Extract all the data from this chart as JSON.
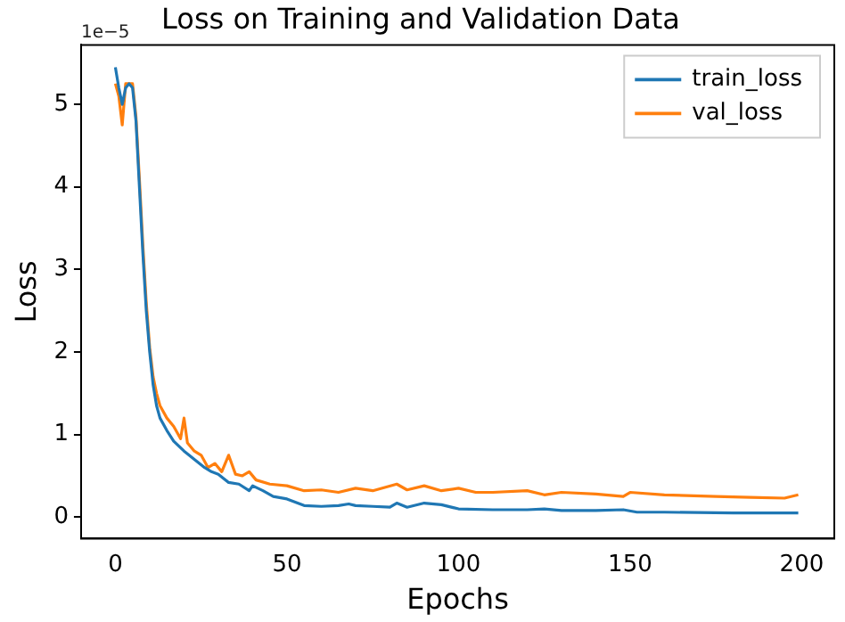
{
  "chart_data": {
    "type": "line",
    "title": "Loss on Training and Validation Data",
    "xlabel": "Epochs",
    "ylabel": "Loss",
    "annotations": [
      "1e−5"
    ],
    "xlim": [
      -10,
      209.5
    ],
    "ylim": [
      -0.26,
      5.72
    ],
    "xticks": [
      0,
      50,
      100,
      150,
      200
    ],
    "yticks": [
      0,
      1,
      2,
      3,
      4,
      5
    ],
    "grid": false,
    "legend": "top right",
    "marker": "none",
    "line_style": "solid",
    "series": [
      {
        "name": "train_loss",
        "color": "#1f77b4",
        "x": [
          0,
          1,
          2,
          3,
          4,
          5,
          6,
          7,
          8,
          9,
          10,
          11,
          12,
          13,
          15,
          17,
          20,
          23,
          26,
          28,
          30,
          33,
          36,
          39,
          40,
          43,
          46,
          50,
          55,
          60,
          65,
          68,
          70,
          75,
          80,
          82,
          85,
          90,
          95,
          100,
          110,
          120,
          125,
          130,
          140,
          148,
          152,
          160,
          180,
          199
        ],
        "values": [
          5.45,
          5.2,
          5.0,
          5.2,
          5.25,
          5.2,
          4.8,
          4.0,
          3.2,
          2.5,
          2.0,
          1.6,
          1.35,
          1.2,
          1.05,
          0.92,
          0.8,
          0.7,
          0.6,
          0.55,
          0.52,
          0.42,
          0.4,
          0.32,
          0.38,
          0.32,
          0.25,
          0.22,
          0.14,
          0.13,
          0.14,
          0.16,
          0.14,
          0.13,
          0.12,
          0.17,
          0.12,
          0.17,
          0.15,
          0.1,
          0.09,
          0.09,
          0.1,
          0.08,
          0.08,
          0.09,
          0.06,
          0.06,
          0.05,
          0.05
        ]
      },
      {
        "name": "val_loss",
        "color": "#ff7f0e",
        "x": [
          0,
          1,
          2,
          3,
          4,
          5,
          6,
          7,
          8,
          9,
          10,
          11,
          12,
          13,
          15,
          17,
          19,
          20,
          21,
          23,
          25,
          27,
          29,
          31,
          33,
          35,
          37,
          39,
          41,
          45,
          50,
          55,
          60,
          65,
          70,
          75,
          82,
          85,
          90,
          95,
          100,
          105,
          110,
          120,
          125,
          130,
          140,
          148,
          150,
          160,
          175,
          185,
          195,
          199
        ],
        "values": [
          5.25,
          5.1,
          4.75,
          5.25,
          5.25,
          5.25,
          4.85,
          4.1,
          3.3,
          2.6,
          2.05,
          1.7,
          1.5,
          1.35,
          1.2,
          1.1,
          0.95,
          1.2,
          0.9,
          0.8,
          0.75,
          0.6,
          0.65,
          0.55,
          0.75,
          0.52,
          0.5,
          0.55,
          0.45,
          0.4,
          0.38,
          0.32,
          0.33,
          0.3,
          0.35,
          0.32,
          0.4,
          0.33,
          0.38,
          0.32,
          0.35,
          0.3,
          0.3,
          0.32,
          0.27,
          0.3,
          0.28,
          0.25,
          0.3,
          0.27,
          0.25,
          0.24,
          0.23,
          0.27
        ]
      }
    ]
  }
}
